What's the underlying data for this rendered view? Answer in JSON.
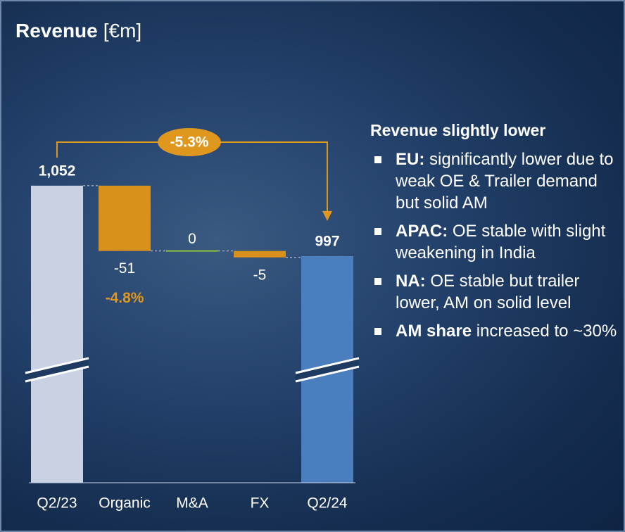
{
  "chart_data": {
    "type": "waterfall",
    "title": "Revenue",
    "title_unit": "[€m]",
    "categories": [
      "Q2/23",
      "Organic",
      "M&A",
      "FX",
      "Q2/24"
    ],
    "values": [
      1052,
      -51,
      0,
      -5,
      997
    ],
    "value_labels": [
      "1,052",
      "-51",
      "0",
      "-5",
      "997"
    ],
    "colors": [
      "#c8d2e2",
      "#d8921c",
      "#8cc43f",
      "#d8921c",
      "#4a7ebf"
    ],
    "ylim": [
      820,
      1075
    ],
    "organic_share": "-4.8%",
    "total_change": "-5.3%"
  },
  "commentary": {
    "heading": "Revenue slightly lower",
    "bullets": [
      {
        "lead": "EU:",
        "text": "significantly lower due to weak OE & Trailer demand but solid AM"
      },
      {
        "lead": "APAC:",
        "text": "OE stable with slight weakening in India"
      },
      {
        "lead": "NA:",
        "text": "OE stable but trailer lower, AM on solid level"
      },
      {
        "lead": "AM share",
        "text": "increased to ~30%"
      }
    ]
  }
}
